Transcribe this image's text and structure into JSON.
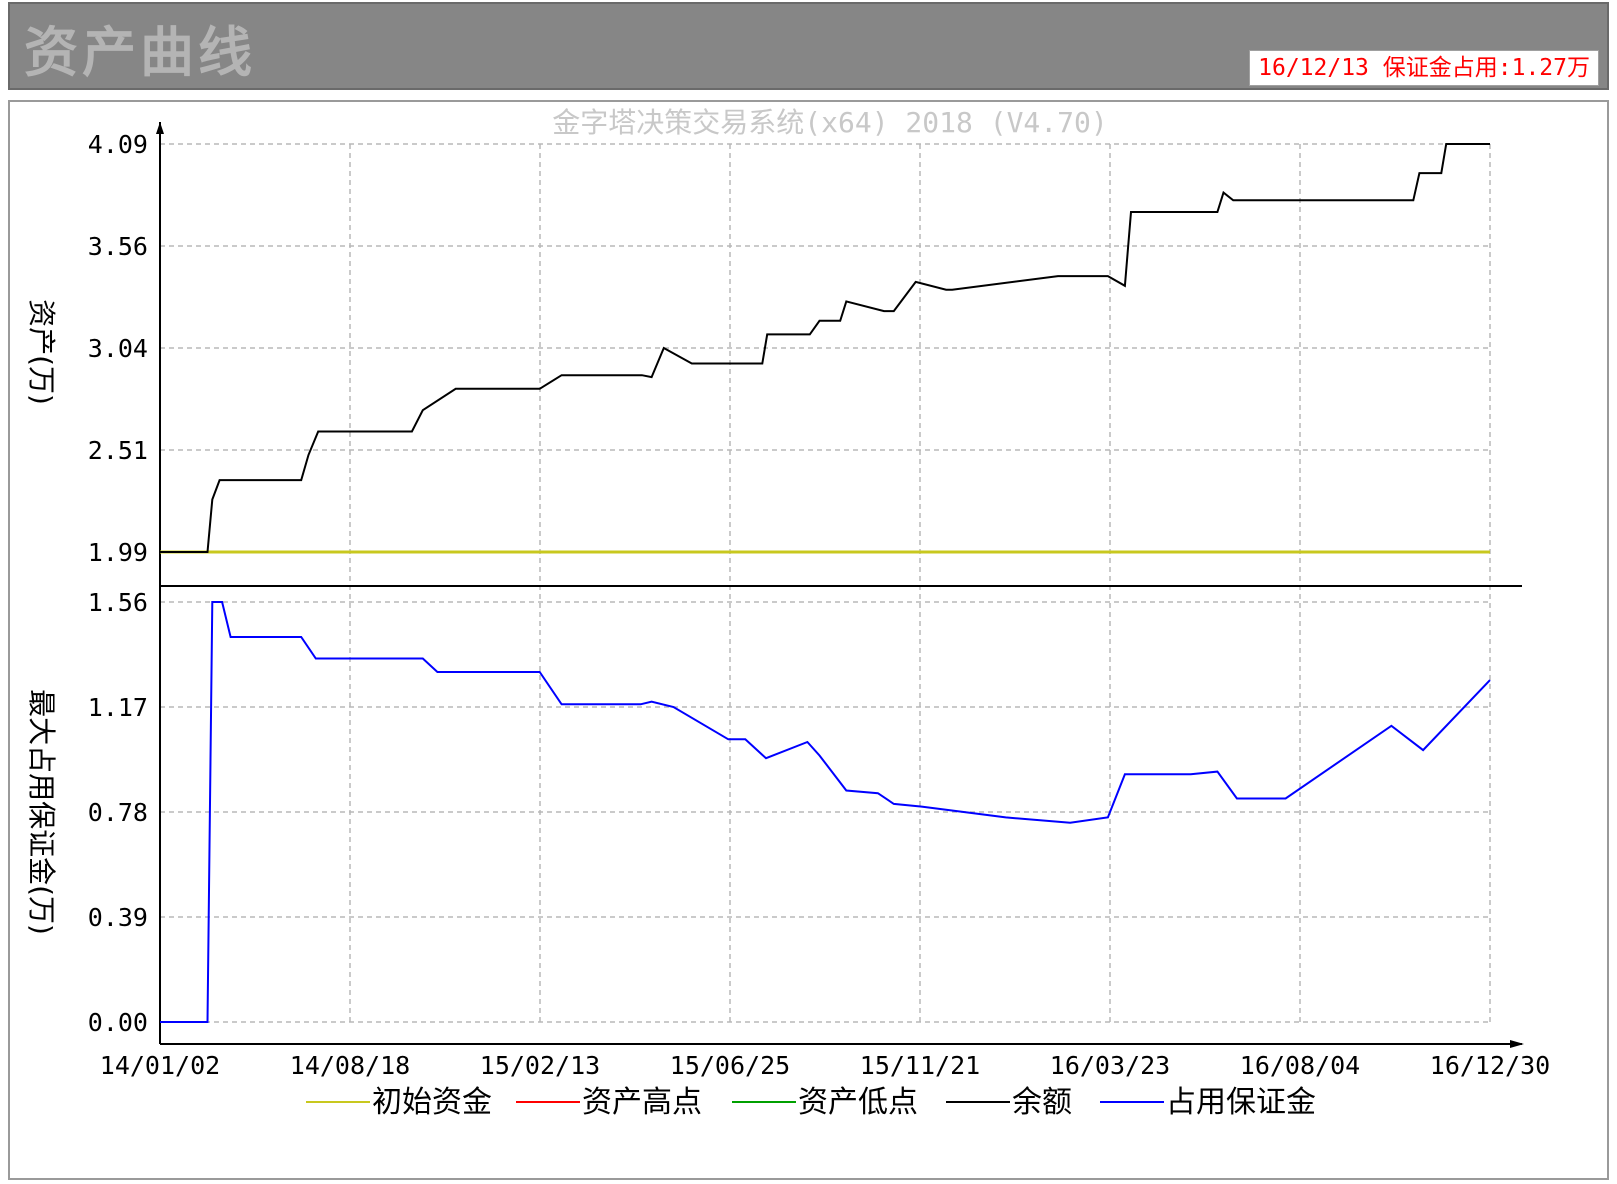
{
  "header": {
    "title": "资产曲线",
    "status": "16/12/13 保证金占用:1.27万"
  },
  "colors": {
    "initial": "#c8c81e",
    "high": "#ff0000",
    "low": "#00a000",
    "balance": "#000000",
    "margin": "#0000ff",
    "grid": "#b8b8b8"
  },
  "chart_data": [
    {
      "type": "line",
      "subtitle": "金字塔决策交易系统(x64) 2018 (V4.70)",
      "ylabel": "资产(万)",
      "yticks": [
        "4.09",
        "3.56",
        "3.04",
        "2.51",
        "1.99"
      ],
      "ylim": [
        1.99,
        4.09
      ],
      "xlim": [
        "14/01/02",
        "16/12/30"
      ],
      "grid": true,
      "series": [
        {
          "name": "初始资金",
          "x": [
            "14/01/02",
            "16/12/30"
          ],
          "y": [
            1.99,
            1.99
          ]
        },
        {
          "name": "余额",
          "x": [
            "14/01/02",
            "14/02/10",
            "14/02/14",
            "14/02/20",
            "14/04/28",
            "14/05/04",
            "14/05/12",
            "14/07/28",
            "14/08/06",
            "14/09/02",
            "14/11/10",
            "14/11/28",
            "15/02/02",
            "15/02/10",
            "15/02/20",
            "15/03/15",
            "15/05/12",
            "15/05/16",
            "15/06/20",
            "15/06/28",
            "15/07/15",
            "15/07/20",
            "15/08/20",
            "15/08/28",
            "15/09/15",
            "15/10/10",
            "15/10/15",
            "16/01/10",
            "16/02/20",
            "16/03/05",
            "16/03/10",
            "16/05/20",
            "16/05/25",
            "16/06/02",
            "16/10/28",
            "16/11/02",
            "16/11/20",
            "16/11/24",
            "16/12/30"
          ],
          "y": [
            1.99,
            1.99,
            2.26,
            2.36,
            2.36,
            2.49,
            2.61,
            2.61,
            2.72,
            2.83,
            2.83,
            2.9,
            2.9,
            2.89,
            3.04,
            2.96,
            2.96,
            3.11,
            3.11,
            3.18,
            3.18,
            3.28,
            3.23,
            3.23,
            3.38,
            3.34,
            3.34,
            3.41,
            3.41,
            3.36,
            3.74,
            3.74,
            3.84,
            3.8,
            3.8,
            3.94,
            3.94,
            4.09,
            4.09
          ]
        }
      ]
    },
    {
      "type": "line",
      "ylabel": "最大占用保证金(万)",
      "yticks": [
        "1.56",
        "1.17",
        "0.78",
        "0.39",
        "0.00"
      ],
      "ylim": [
        0,
        1.56
      ],
      "xlim": [
        "14/01/02",
        "16/12/30"
      ],
      "xticks": [
        "14/01/02",
        "14/08/18",
        "15/02/13",
        "15/06/25",
        "15/11/21",
        "16/03/23",
        "16/08/04",
        "16/12/30"
      ],
      "grid": true,
      "series": [
        {
          "name": "占用保证金",
          "x": [
            "14/01/02",
            "14/02/10",
            "14/02/14",
            "14/02/22",
            "14/03/01",
            "14/04/28",
            "14/05/10",
            "14/08/06",
            "14/08/18",
            "14/11/10",
            "14/11/28",
            "15/02/01",
            "15/02/10",
            "15/02/28",
            "15/04/14",
            "15/04/28",
            "15/05/15",
            "15/06/18",
            "15/06/28",
            "15/07/20",
            "15/08/15",
            "15/08/28",
            "15/09/20",
            "15/11/28",
            "16/01/20",
            "16/02/20",
            "16/03/05",
            "16/04/28",
            "16/05/20",
            "16/06/05",
            "16/07/15",
            "16/10/10",
            "16/11/05",
            "16/12/30"
          ],
          "y": [
            0,
            0,
            1.56,
            1.56,
            1.43,
            1.43,
            1.35,
            1.35,
            1.3,
            1.3,
            1.18,
            1.18,
            1.19,
            1.17,
            1.05,
            1.05,
            0.98,
            1.04,
            0.99,
            0.86,
            0.85,
            0.81,
            0.8,
            0.76,
            0.74,
            0.76,
            0.92,
            0.92,
            0.93,
            0.83,
            0.83,
            1.1,
            1.01,
            1.27
          ]
        }
      ]
    }
  ],
  "legend": {
    "items": [
      {
        "label": "初始资金",
        "color": "#c8c81e"
      },
      {
        "label": "资产高点",
        "color": "#ff0000"
      },
      {
        "label": "资产低点",
        "color": "#00a000"
      },
      {
        "label": "余额",
        "color": "#000000"
      },
      {
        "label": "占用保证金",
        "color": "#0000ff"
      }
    ]
  }
}
